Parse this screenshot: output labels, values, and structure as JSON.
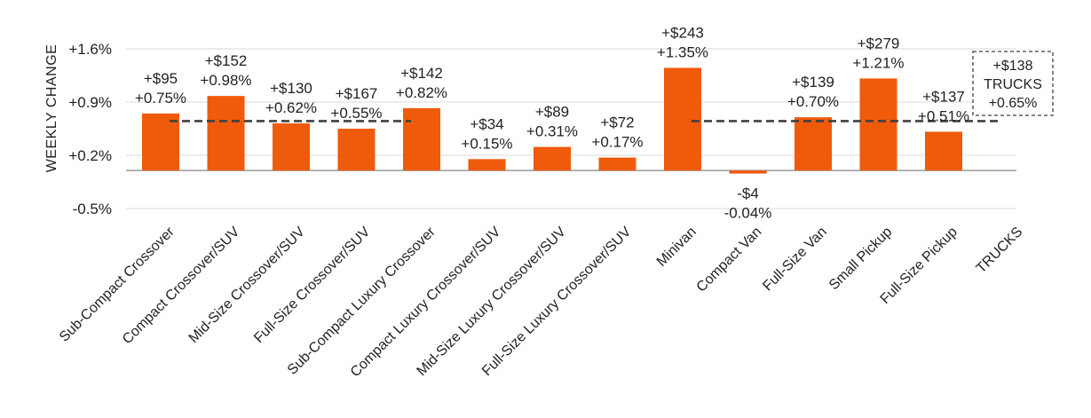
{
  "chart_data": {
    "type": "bar",
    "title": "",
    "xlabel": "",
    "ylabel": "WEEKLY CHANGE",
    "ylim": [
      -0.5,
      1.6
    ],
    "yticks": [
      -0.5,
      0.2,
      0.9,
      1.6
    ],
    "ytick_labels": [
      "-0.5%",
      "+0.2%",
      "+0.9%",
      "+1.6%"
    ],
    "grid": true,
    "bar_color": "#f05a0b",
    "categories": [
      "Sub-Compact Crossover",
      "Compact Crossover/SUV",
      "Mid-Size Crossover/SUV",
      "Full-Size Crossover/SUV",
      "Sub-Compact Luxury Crossover",
      "Compact Luxury Crossover/SUV",
      "Mid-Size Luxury Crossover/SUV",
      "Full-Size Luxury Crossover/SUV",
      "Minivan",
      "Compact Van",
      "Full-Size Van",
      "Small Pickup",
      "Full-Size Pickup",
      "TRUCKS"
    ],
    "values": [
      0.75,
      0.98,
      0.62,
      0.55,
      0.82,
      0.15,
      0.31,
      0.17,
      1.35,
      -0.04,
      0.7,
      1.21,
      0.51,
      null
    ],
    "dollar_labels": [
      "+$95",
      "+$152",
      "+$130",
      "+$167",
      "+$142",
      "+$34",
      "+$89",
      "+$72",
      "+$243",
      "-$4",
      "+$139",
      "+$279",
      "+$137",
      ""
    ],
    "pct_labels": [
      "+0.75%",
      "+0.98%",
      "+0.62%",
      "+0.55%",
      "+0.82%",
      "+0.15%",
      "+0.31%",
      "+0.17%",
      "+1.35%",
      "-0.04%",
      "+0.70%",
      "+1.21%",
      "+0.51%",
      ""
    ],
    "reference_lines": [
      {
        "value": 0.65,
        "from_category": 0,
        "to_category": 4
      },
      {
        "value": 0.65,
        "from_category": 8,
        "to_category": 13
      }
    ],
    "callout": {
      "dollar": "+$138",
      "name": "TRUCKS",
      "pct": "+0.65%"
    }
  }
}
